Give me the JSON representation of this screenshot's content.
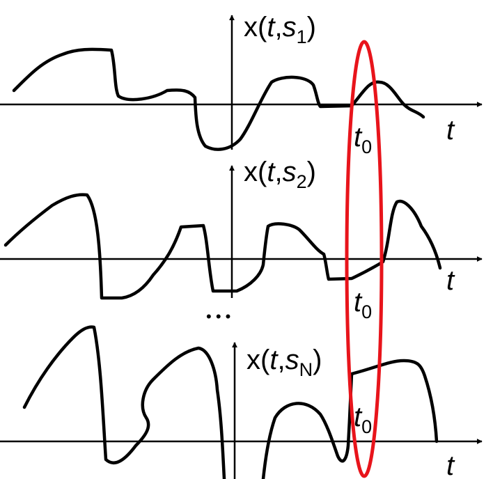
{
  "panels": [
    {
      "label": {
        "prefix": "x(",
        "t": "t",
        "comma": ",",
        "s": "s",
        "sub": "1",
        "close": ")"
      },
      "t_axis": "t",
      "t0": {
        "base": "t",
        "sub": "0"
      }
    },
    {
      "label": {
        "prefix": "x(",
        "t": "t",
        "comma": ",",
        "s": "s",
        "sub": "2",
        "close": ")"
      },
      "t_axis": "t",
      "t0": {
        "base": "t",
        "sub": "0"
      }
    },
    {
      "label": {
        "prefix": "x(",
        "t": "t",
        "comma": ",",
        "s": "s",
        "sub": "N",
        "close": ")"
      },
      "t_axis": "t",
      "t0": {
        "base": "t",
        "sub": "0"
      }
    }
  ],
  "ellipsis": "• • •",
  "colors": {
    "curve": "#000000",
    "highlight": "#e8141b",
    "background": "#ffffff"
  }
}
